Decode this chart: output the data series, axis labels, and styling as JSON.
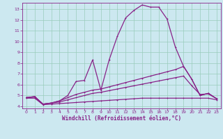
{
  "xlabel": "Windchill (Refroidissement éolien,°C)",
  "bg_color": "#cce8f0",
  "grid_color": "#99ccbb",
  "line_color": "#882288",
  "xlim": [
    -0.5,
    23.5
  ],
  "ylim": [
    3.8,
    13.6
  ],
  "xticks": [
    0,
    1,
    2,
    3,
    4,
    5,
    6,
    7,
    8,
    9,
    10,
    11,
    12,
    13,
    14,
    15,
    16,
    17,
    18,
    19,
    20,
    21,
    22,
    23
  ],
  "yticks": [
    4,
    5,
    6,
    7,
    8,
    9,
    10,
    11,
    12,
    13
  ],
  "line1_x": [
    0,
    1,
    2,
    3,
    4,
    5,
    6,
    7,
    8,
    9,
    10,
    11,
    12,
    13,
    14,
    15,
    16,
    17,
    18,
    19,
    20,
    21,
    22,
    23
  ],
  "line1_y": [
    4.8,
    4.9,
    4.2,
    4.3,
    4.5,
    5.0,
    6.3,
    6.4,
    8.3,
    5.5,
    8.3,
    10.5,
    12.2,
    12.9,
    13.4,
    13.2,
    13.2,
    12.1,
    9.5,
    7.7,
    6.5,
    5.0,
    5.2,
    4.7
  ],
  "line2_x": [
    0,
    1,
    2,
    3,
    4,
    5,
    6,
    7,
    8,
    9,
    10,
    11,
    12,
    13,
    14,
    15,
    16,
    17,
    18,
    19,
    20,
    21,
    22,
    23
  ],
  "line2_y": [
    4.8,
    4.9,
    4.2,
    4.3,
    4.5,
    4.8,
    5.1,
    5.3,
    5.5,
    5.6,
    5.8,
    6.0,
    6.2,
    6.4,
    6.6,
    6.8,
    7.0,
    7.2,
    7.4,
    7.7,
    6.5,
    5.0,
    5.2,
    4.7
  ],
  "line3_x": [
    0,
    1,
    2,
    3,
    4,
    5,
    6,
    7,
    8,
    9,
    10,
    11,
    12,
    13,
    14,
    15,
    16,
    17,
    18,
    19,
    20,
    21,
    22,
    23
  ],
  "line3_y": [
    4.8,
    4.85,
    4.2,
    4.3,
    4.4,
    4.6,
    4.8,
    5.0,
    5.2,
    5.3,
    5.45,
    5.6,
    5.75,
    5.9,
    6.05,
    6.2,
    6.35,
    6.5,
    6.65,
    6.8,
    5.9,
    5.1,
    5.15,
    4.7
  ],
  "line4_x": [
    0,
    1,
    2,
    3,
    4,
    5,
    6,
    7,
    8,
    9,
    10,
    11,
    12,
    13,
    14,
    15,
    16,
    17,
    18,
    19,
    20,
    21,
    22,
    23
  ],
  "line4_y": [
    4.75,
    4.75,
    4.15,
    4.2,
    4.25,
    4.3,
    4.35,
    4.4,
    4.45,
    4.5,
    4.55,
    4.6,
    4.65,
    4.7,
    4.75,
    4.75,
    4.75,
    4.75,
    4.75,
    4.75,
    4.75,
    4.75,
    4.75,
    4.6
  ]
}
